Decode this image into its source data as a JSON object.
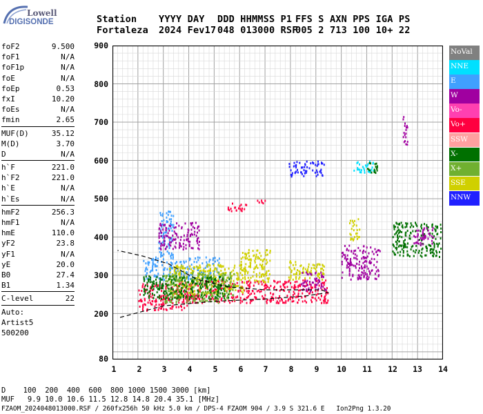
{
  "logo": {
    "line1": "Lowell",
    "line2": "DIGISONDE"
  },
  "header": {
    "row1": [
      "Station",
      "YYYY DAY",
      "DDD HHMMSS P1",
      "FFS S AXN PPS IGA PS"
    ],
    "row2": [
      "Fortaleza",
      "2024 Fev17",
      "048 013000 RSF",
      "005 2 713 100 10+ 22"
    ]
  },
  "params": {
    "group1": [
      [
        "foF2",
        "9.500"
      ],
      [
        "foF1",
        "N/A"
      ],
      [
        "foF1p",
        "N/A"
      ],
      [
        "foE",
        "N/A"
      ],
      [
        "foEp",
        "0.53"
      ],
      [
        "fxI",
        "10.20"
      ],
      [
        "foEs",
        "N/A"
      ],
      [
        "fmin",
        "2.65"
      ]
    ],
    "group2": [
      [
        "MUF(D)",
        "35.12"
      ],
      [
        "M(D)",
        "3.70"
      ],
      [
        "D",
        "N/A"
      ]
    ],
    "group3": [
      [
        "h`F",
        "221.0"
      ],
      [
        "h`F2",
        "221.0"
      ],
      [
        "h`E",
        "N/A"
      ],
      [
        "h`Es",
        "N/A"
      ]
    ],
    "group4": [
      [
        "hmF2",
        "256.3"
      ],
      [
        "hmF1",
        "N/A"
      ],
      [
        "hmE",
        "110.0"
      ],
      [
        "yF2",
        "23.8"
      ],
      [
        "yF1",
        "N/A"
      ],
      [
        "yE",
        "20.0"
      ],
      [
        "B0",
        "27.4"
      ],
      [
        "B1",
        "1.34"
      ]
    ],
    "group5": [
      [
        "C-level",
        "22"
      ]
    ],
    "auto": [
      "Auto:",
      "Artist5",
      "500200"
    ]
  },
  "chart_data": {
    "type": "scatter",
    "xlim": [
      1,
      14
    ],
    "ylim": [
      80,
      900
    ],
    "x_ticks": [
      "1",
      "2",
      "3",
      "4",
      "5",
      "6",
      "7",
      "8",
      "9",
      "10",
      "11",
      "12",
      "13",
      "14"
    ],
    "y_ticks": [
      "900",
      "800",
      "700",
      "600",
      "500",
      "400",
      "300",
      "200",
      "80"
    ],
    "grid": true,
    "legend_position": "right",
    "legend": [
      {
        "name": "NoVal",
        "color": "#808080"
      },
      {
        "name": "NNE",
        "color": "#00e0ff"
      },
      {
        "name": "E",
        "color": "#40a0ff"
      },
      {
        "name": "W",
        "color": "#a000a0"
      },
      {
        "name": "Vo-",
        "color": "#ff40b0"
      },
      {
        "name": "Vo+",
        "color": "#ff0040"
      },
      {
        "name": "SSW",
        "color": "#ffa0a0"
      },
      {
        "name": "X-",
        "color": "#007000"
      },
      {
        "name": "X+",
        "color": "#70b030"
      },
      {
        "name": "SSE",
        "color": "#d0d000"
      },
      {
        "name": "NNW",
        "color": "#2020ff"
      }
    ],
    "clusters": [
      {
        "series": "Vo+",
        "x": [
          2.0,
          4.0
        ],
        "y": [
          210,
          280
        ]
      },
      {
        "series": "Vo+",
        "x": [
          3.5,
          9.5
        ],
        "y": [
          230,
          290
        ]
      },
      {
        "series": "E",
        "x": [
          2.2,
          5.2
        ],
        "y": [
          290,
          350
        ]
      },
      {
        "series": "E",
        "x": [
          2.8,
          3.4
        ],
        "y": [
          350,
          470
        ]
      },
      {
        "series": "W",
        "x": [
          2.8,
          4.4
        ],
        "y": [
          370,
          440
        ]
      },
      {
        "series": "SSE",
        "x": [
          3.2,
          6.2
        ],
        "y": [
          250,
          330
        ]
      },
      {
        "series": "SSE",
        "x": [
          6.0,
          7.2
        ],
        "y": [
          280,
          370
        ]
      },
      {
        "series": "SSE",
        "x": [
          7.9,
          9.3
        ],
        "y": [
          290,
          340
        ]
      },
      {
        "series": "X+",
        "x": [
          3.0,
          5.8
        ],
        "y": [
          230,
          310
        ]
      },
      {
        "series": "X-",
        "x": [
          2.2,
          5.6
        ],
        "y": [
          240,
          300
        ]
      },
      {
        "series": "W",
        "x": [
          8.4,
          9.4
        ],
        "y": [
          260,
          310
        ]
      },
      {
        "series": "W",
        "x": [
          10.0,
          11.5
        ],
        "y": [
          290,
          380
        ]
      },
      {
        "series": "SSE",
        "x": [
          10.3,
          10.7
        ],
        "y": [
          390,
          450
        ]
      },
      {
        "series": "NNW",
        "x": [
          7.9,
          9.3
        ],
        "y": [
          560,
          600
        ]
      },
      {
        "series": "NNE",
        "x": [
          10.4,
          11.3
        ],
        "y": [
          570,
          600
        ]
      },
      {
        "series": "X-",
        "x": [
          11.0,
          11.4
        ],
        "y": [
          560,
          600
        ]
      },
      {
        "series": "W",
        "x": [
          12.4,
          12.6
        ],
        "y": [
          640,
          720
        ]
      },
      {
        "series": "Vo+",
        "x": [
          5.5,
          6.4
        ],
        "y": [
          470,
          490
        ]
      },
      {
        "series": "Vo+",
        "x": [
          6.6,
          7.0
        ],
        "y": [
          490,
          500
        ]
      },
      {
        "series": "X-",
        "x": [
          12.0,
          13.9
        ],
        "y": [
          350,
          440
        ]
      },
      {
        "series": "W",
        "x": [
          12.8,
          13.6
        ],
        "y": [
          380,
          430
        ]
      }
    ],
    "profile_curve": [
      [
        1.3,
        190
      ],
      [
        3,
        220
      ],
      [
        5,
        232
      ],
      [
        7,
        238
      ],
      [
        8.6,
        246
      ],
      [
        9.5,
        255
      ],
      [
        9.2,
        262
      ],
      [
        7,
        262
      ],
      [
        5.5,
        270
      ],
      [
        4.3,
        290
      ],
      [
        3.2,
        330
      ],
      [
        2.2,
        350
      ],
      [
        1.2,
        365
      ]
    ]
  },
  "footer": {
    "d_row": "D    100  200  400  600  800 1000 1500 3000 [km]",
    "muf_row": "MUF   9.9 10.0 10.6 11.5 12.8 14.8 20.4 35.1 [MHz]",
    "file_row": "FZAOM_2024048013000.RSF / 260fx256h 50 kHz 5.0 km / DPS-4 FZAOM 904 / 3.9 S 321.6 E   Ion2Png 1.3.20"
  }
}
